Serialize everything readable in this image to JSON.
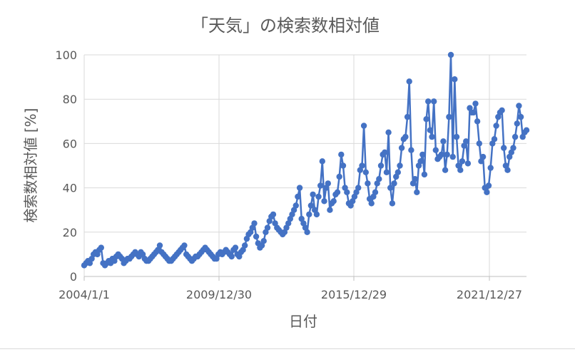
{
  "chart_data": {
    "type": "line",
    "title": "「天気」の検索数相対値",
    "xlabel": "日付",
    "ylabel": "検索数相対値 [%]",
    "ylim": [
      0,
      100
    ],
    "yticks": [
      0,
      20,
      40,
      60,
      80,
      100
    ],
    "xticks": [
      "2004/1/1",
      "2009/12/30",
      "2015/12/29",
      "2021/12/27"
    ],
    "grid": true,
    "legend": "none",
    "colors": {
      "line": "#4472c4",
      "grid": "#d9d9d9",
      "axis": "#bfbfbf",
      "text": "#595959"
    },
    "series": [
      {
        "x_start": "2004-01",
        "frequency": "monthly",
        "values": [
          5,
          6,
          7,
          6,
          8,
          10,
          11,
          10,
          12,
          13,
          6,
          5,
          6,
          7,
          6,
          8,
          7,
          9,
          10,
          9,
          8,
          6,
          7,
          8,
          8,
          9,
          10,
          11,
          10,
          9,
          11,
          10,
          8,
          7,
          7,
          8,
          9,
          10,
          11,
          12,
          14,
          11,
          10,
          9,
          8,
          7,
          7,
          8,
          9,
          10,
          11,
          12,
          13,
          14,
          10,
          9,
          8,
          7,
          8,
          9,
          9,
          10,
          11,
          12,
          13,
          12,
          11,
          10,
          9,
          8,
          8,
          10,
          11,
          10,
          11,
          12,
          11,
          10,
          9,
          12,
          13,
          10,
          9,
          11,
          12,
          14,
          17,
          19,
          20,
          22,
          24,
          18,
          15,
          13,
          14,
          16,
          20,
          22,
          25,
          27,
          28,
          24,
          22,
          21,
          20,
          19,
          20,
          22,
          24,
          26,
          28,
          30,
          32,
          36,
          40,
          26,
          24,
          22,
          20,
          28,
          32,
          37,
          30,
          28,
          36,
          41,
          52,
          34,
          40,
          42,
          30,
          33,
          34,
          37,
          38,
          45,
          55,
          50,
          40,
          38,
          33,
          32,
          34,
          36,
          38,
          40,
          48,
          50,
          68,
          47,
          42,
          35,
          33,
          36,
          38,
          42,
          44,
          50,
          55,
          56,
          47,
          65,
          40,
          33,
          42,
          45,
          47,
          50,
          58,
          62,
          63,
          72,
          88,
          57,
          42,
          44,
          38,
          50,
          52,
          55,
          46,
          71,
          79,
          66,
          63,
          79,
          57,
          53,
          54,
          55,
          61,
          48,
          55,
          72,
          100,
          54,
          89,
          63,
          50,
          48,
          52,
          59,
          61,
          51,
          76,
          74,
          74,
          78,
          70,
          60,
          52,
          54,
          40,
          38,
          41,
          49,
          60,
          62,
          68,
          72,
          74,
          75,
          58,
          50,
          48,
          54,
          56,
          58,
          63,
          69,
          77,
          72,
          63,
          65,
          66
        ]
      }
    ]
  }
}
